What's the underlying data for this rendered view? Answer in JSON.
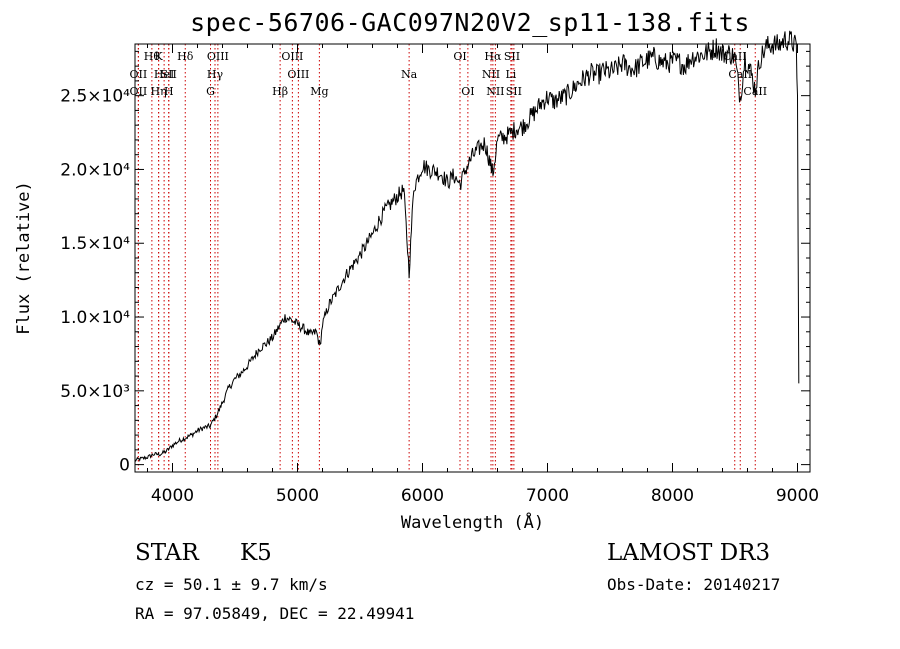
{
  "chart_data": {
    "type": "line",
    "title": "spec-56706-GAC097N20V2_sp11-138.fits",
    "xlabel": "Wavelength (Å)",
    "ylabel": "Flux (relative)",
    "xlim": [
      3700,
      9100
    ],
    "ylim": [
      -500,
      28500
    ],
    "xticks": [
      {
        "value": 4000,
        "label": "4000"
      },
      {
        "value": 5000,
        "label": "5000"
      },
      {
        "value": 6000,
        "label": "6000"
      },
      {
        "value": 7000,
        "label": "7000"
      },
      {
        "value": 8000,
        "label": "8000"
      },
      {
        "value": 9000,
        "label": "9000"
      }
    ],
    "yticks": [
      {
        "value": 0,
        "label": "0"
      },
      {
        "value": 5000,
        "label": "5.0×10³"
      },
      {
        "value": 10000,
        "label": "1.0×10⁴"
      },
      {
        "value": 15000,
        "label": "1.5×10⁴"
      },
      {
        "value": 20000,
        "label": "2.0×10⁴"
      },
      {
        "value": 25000,
        "label": "2.5×10⁴"
      }
    ],
    "series": [
      {
        "name": "spectrum",
        "x": [
          3700,
          3750,
          3800,
          3850,
          3900,
          3950,
          4000,
          4050,
          4100,
          4150,
          4200,
          4250,
          4300,
          4350,
          4400,
          4450,
          4500,
          4550,
          4600,
          4650,
          4700,
          4750,
          4800,
          4850,
          4900,
          4950,
          5000,
          5050,
          5100,
          5150,
          5180,
          5200,
          5250,
          5300,
          5350,
          5400,
          5450,
          5500,
          5550,
          5600,
          5650,
          5700,
          5750,
          5800,
          5850,
          5893,
          5930,
          5950,
          6000,
          6050,
          6100,
          6150,
          6200,
          6250,
          6300,
          6350,
          6400,
          6450,
          6500,
          6563,
          6600,
          6650,
          6700,
          6750,
          6800,
          6850,
          6900,
          6950,
          7000,
          7050,
          7100,
          7150,
          7200,
          7250,
          7300,
          7350,
          7400,
          7450,
          7500,
          7550,
          7600,
          7650,
          7700,
          7750,
          7800,
          7850,
          7900,
          7950,
          8000,
          8050,
          8100,
          8150,
          8200,
          8250,
          8300,
          8350,
          8400,
          8450,
          8498,
          8542,
          8580,
          8620,
          8662,
          8700,
          8750,
          8800,
          8850,
          8900,
          8950,
          8990,
          9000,
          9010
        ],
        "y": [
          300,
          400,
          500,
          700,
          700,
          900,
          1300,
          1600,
          1800,
          2000,
          2300,
          2500,
          2600,
          3300,
          4200,
          5200,
          5800,
          6200,
          6700,
          7300,
          7900,
          8200,
          8600,
          9300,
          10000,
          9800,
          9500,
          9200,
          8800,
          9000,
          8000,
          9500,
          10800,
          11500,
          12300,
          13000,
          13600,
          14200,
          14900,
          15600,
          16500,
          17200,
          17700,
          18200,
          18600,
          13000,
          18800,
          19200,
          20300,
          20000,
          19900,
          19700,
          19100,
          19600,
          19000,
          20100,
          20900,
          21400,
          21800,
          19700,
          22000,
          22200,
          22400,
          22800,
          22900,
          23400,
          23900,
          24500,
          24900,
          24600,
          24800,
          25000,
          25400,
          25900,
          26200,
          26500,
          26400,
          26700,
          26600,
          26800,
          27200,
          26900,
          26800,
          27200,
          27400,
          27600,
          27300,
          27200,
          27300,
          27300,
          27000,
          27600,
          27700,
          27800,
          28000,
          28300,
          27800,
          27900,
          27600,
          24800,
          27600,
          26800,
          25400,
          27500,
          28300,
          28500,
          28400,
          28800,
          28700,
          28300,
          24800,
          5500
        ]
      }
    ],
    "lines": [
      {
        "wave": 3835,
        "label": "Hθ",
        "row": 0
      },
      {
        "wave": 3889,
        "label": "K",
        "row": 0
      },
      {
        "wave": 4102,
        "label": "Hδ",
        "row": 0
      },
      {
        "wave": 4363,
        "label": "OIII",
        "row": 0
      },
      {
        "wave": 4959,
        "label": "OIII",
        "row": 0
      },
      {
        "wave": 6300,
        "label": "OI",
        "row": 0
      },
      {
        "wave": 6563,
        "label": "Hα",
        "row": 0
      },
      {
        "wave": 6716,
        "label": "SII",
        "row": 0
      },
      {
        "wave": 8498,
        "label": "CaII",
        "row": 0
      },
      {
        "wave": 3727,
        "label": "OII",
        "row": 1
      },
      {
        "wave": 3933,
        "label": "HeI",
        "row": 1
      },
      {
        "wave": 3970,
        "label": "SII",
        "row": 1
      },
      {
        "wave": 4340,
        "label": "Hγ",
        "row": 1
      },
      {
        "wave": 5007,
        "label": "OIII",
        "row": 1
      },
      {
        "wave": 5893,
        "label": "Na",
        "row": 1
      },
      {
        "wave": 6548,
        "label": "NII",
        "row": 1
      },
      {
        "wave": 6707,
        "label": "Li",
        "row": 1
      },
      {
        "wave": 8542,
        "label": "CaII",
        "row": 1
      },
      {
        "wave": 3727,
        "label": "OII",
        "row": 2
      },
      {
        "wave": 3889,
        "label": "Hη",
        "row": 2
      },
      {
        "wave": 3970,
        "label": "H",
        "row": 2
      },
      {
        "wave": 4304,
        "label": "G",
        "row": 2
      },
      {
        "wave": 4861,
        "label": "Hβ",
        "row": 2
      },
      {
        "wave": 5175,
        "label": "Mg",
        "row": 2
      },
      {
        "wave": 6363,
        "label": "OI",
        "row": 2
      },
      {
        "wave": 6583,
        "label": "NII",
        "row": 2
      },
      {
        "wave": 6731,
        "label": "SII",
        "row": 2
      },
      {
        "wave": 8662,
        "label": "CaII",
        "row": 2
      }
    ],
    "line_color": "#cc0000"
  },
  "info": {
    "class_label": "STAR",
    "subclass": "K5",
    "survey": "LAMOST DR3",
    "redshift": "cz = 50.1 ± 9.7 km/s",
    "obs_date": "Obs-Date: 20140217",
    "coords": "RA =  97.05849, DEC =  22.49941"
  }
}
